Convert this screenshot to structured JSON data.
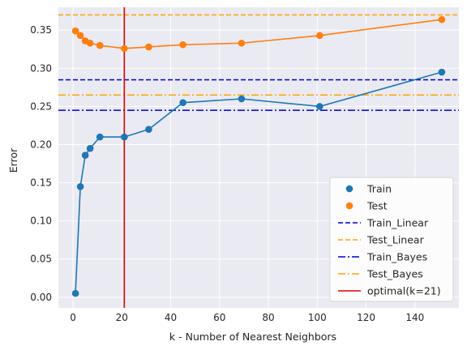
{
  "chart_data": {
    "type": "line",
    "xlabel": "k - Number of Nearest Neighbors",
    "ylabel": "Error",
    "xlim": [
      -6,
      158
    ],
    "ylim": [
      -0.014,
      0.38
    ],
    "xticks": [
      0,
      20,
      40,
      60,
      80,
      100,
      120,
      140
    ],
    "yticks": [
      0.0,
      0.05,
      0.1,
      0.15,
      0.2,
      0.25,
      0.3,
      0.35
    ],
    "grid": true,
    "legend_position": "lower-right",
    "series": [
      {
        "name": "Train",
        "color": "#1f77b4",
        "x": [
          1,
          3,
          5,
          7,
          11,
          21,
          31,
          45,
          69,
          101,
          151
        ],
        "y": [
          0.005,
          0.145,
          0.186,
          0.195,
          0.21,
          0.21,
          0.22,
          0.255,
          0.26,
          0.25,
          0.295
        ]
      },
      {
        "name": "Test",
        "color": "#ff7f0e",
        "x": [
          1,
          3,
          5,
          7,
          11,
          21,
          31,
          45,
          69,
          101,
          151
        ],
        "y": [
          0.349,
          0.343,
          0.336,
          0.333,
          0.33,
          0.326,
          0.328,
          0.331,
          0.333,
          0.343,
          0.364
        ]
      }
    ],
    "hlines": [
      {
        "name": "Train_Linear",
        "y": 0.285,
        "color": "#0000cc",
        "style": "dashed"
      },
      {
        "name": "Test_Linear",
        "y": 0.37,
        "color": "#ffa500",
        "style": "dashed"
      },
      {
        "name": "Train_Bayes",
        "y": 0.245,
        "color": "#0000cc",
        "style": "dashdot"
      },
      {
        "name": "Test_Bayes",
        "y": 0.265,
        "color": "#ffa500",
        "style": "dashdot"
      }
    ],
    "vlines": [
      {
        "name": "optimal(k=21)",
        "x": 21,
        "color": "#e00000",
        "style": "solid"
      }
    ]
  }
}
